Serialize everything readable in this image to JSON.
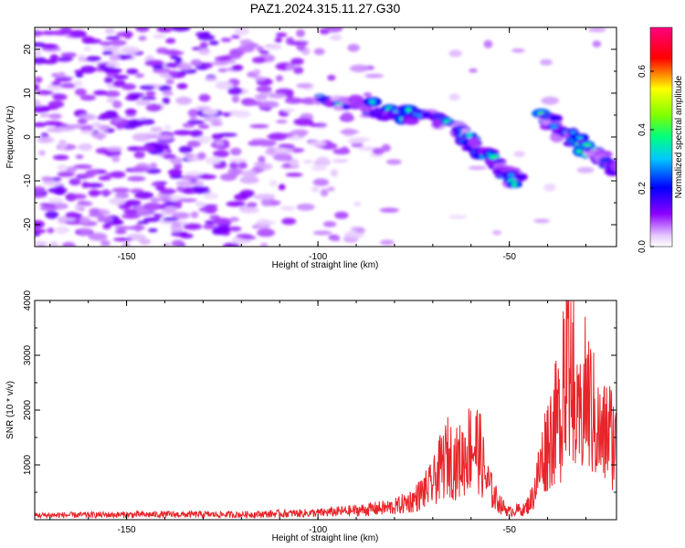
{
  "title": "PAZ1.2024.315.11.27.G30",
  "chart_data": [
    {
      "type": "heatmap",
      "xlabel": "Height of straight line (km)",
      "ylabel": "Frequency (Hz)",
      "xlim": [
        -174,
        -22
      ],
      "ylim": [
        -25,
        25
      ],
      "xticks": [
        -150,
        -100,
        -50
      ],
      "yticks": [
        -20,
        -10,
        0,
        10,
        20
      ],
      "colorbar": {
        "label": "Normalized spectral amplitude",
        "range": [
          0,
          0.75
        ],
        "ticks": [
          0.0,
          0.2,
          0.4,
          0.6
        ],
        "colors": [
          "#ffffff",
          "#e6c8ff",
          "#8c00ff",
          "#0000ff",
          "#00c8ff",
          "#00ff80",
          "#80ff00",
          "#ffff00",
          "#ff0000",
          "#ff0080"
        ]
      },
      "features": [
        {
          "x_start": -100,
          "x_end": -64,
          "freq_start": 9,
          "freq_end": 3,
          "peak_amplitude": 0.3
        },
        {
          "x_start": -64,
          "x_end": -48,
          "freq_start": 2,
          "freq_end": -10,
          "peak_amplitude": 0.3
        },
        {
          "x_start": -42,
          "x_end": -22,
          "freq_start": 5,
          "freq_end": -8,
          "peak_amplitude": 0.35
        }
      ]
    },
    {
      "type": "line",
      "xlabel": "Height of straight line (km)",
      "ylabel": "SNR (10 * v/v)",
      "xlim": [
        -174,
        -22
      ],
      "ylim": [
        0,
        4000
      ],
      "xticks": [
        -150,
        -100,
        -50
      ],
      "yticks": [
        1000,
        2000,
        3000,
        4000
      ],
      "color": "#e8252a",
      "series": [
        {
          "x": [
            -174,
            -160,
            -140,
            -120,
            -100,
            -90,
            -80,
            -75,
            -70,
            -68,
            -66,
            -64,
            -62,
            -60,
            -58,
            -56,
            -54,
            -52,
            -50,
            -48,
            -46,
            -44,
            -42,
            -40,
            -38,
            -36,
            -34,
            -32,
            -30,
            -28,
            -26,
            -24,
            -22
          ],
          "y": [
            110,
            120,
            130,
            130,
            170,
            230,
            320,
            500,
            900,
            1300,
            1600,
            1400,
            1550,
            1900,
            1800,
            1000,
            600,
            350,
            200,
            250,
            250,
            550,
            1300,
            2000,
            2400,
            2700,
            3400,
            2200,
            3200,
            2600,
            2000,
            2300,
            1800
          ]
        }
      ]
    }
  ]
}
